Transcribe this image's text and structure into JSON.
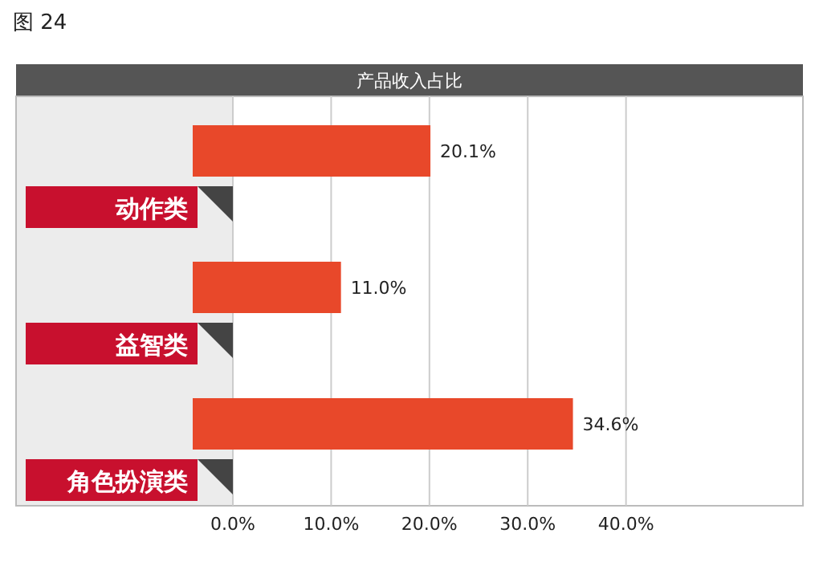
{
  "chart_data": {
    "type": "bar",
    "orientation": "horizontal",
    "title": "产品收入占比",
    "annotations": [
      "图 24"
    ],
    "categories": [
      "动作类",
      "益智类",
      "角色扮演类"
    ],
    "values": [
      20.1,
      11.0,
      34.6
    ],
    "value_labels": [
      "20.1%",
      "11.0%",
      "34.6%"
    ],
    "color": "#e8482a",
    "xlim": [
      0,
      58
    ],
    "xticks": [
      {
        "value": 0,
        "label": "0.0%"
      },
      {
        "value": 10,
        "label": "10.0%"
      },
      {
        "value": 20,
        "label": "20.0%"
      },
      {
        "value": 30,
        "label": "30.0%"
      },
      {
        "value": 40,
        "label": "40.0%"
      }
    ],
    "grid": "x"
  }
}
